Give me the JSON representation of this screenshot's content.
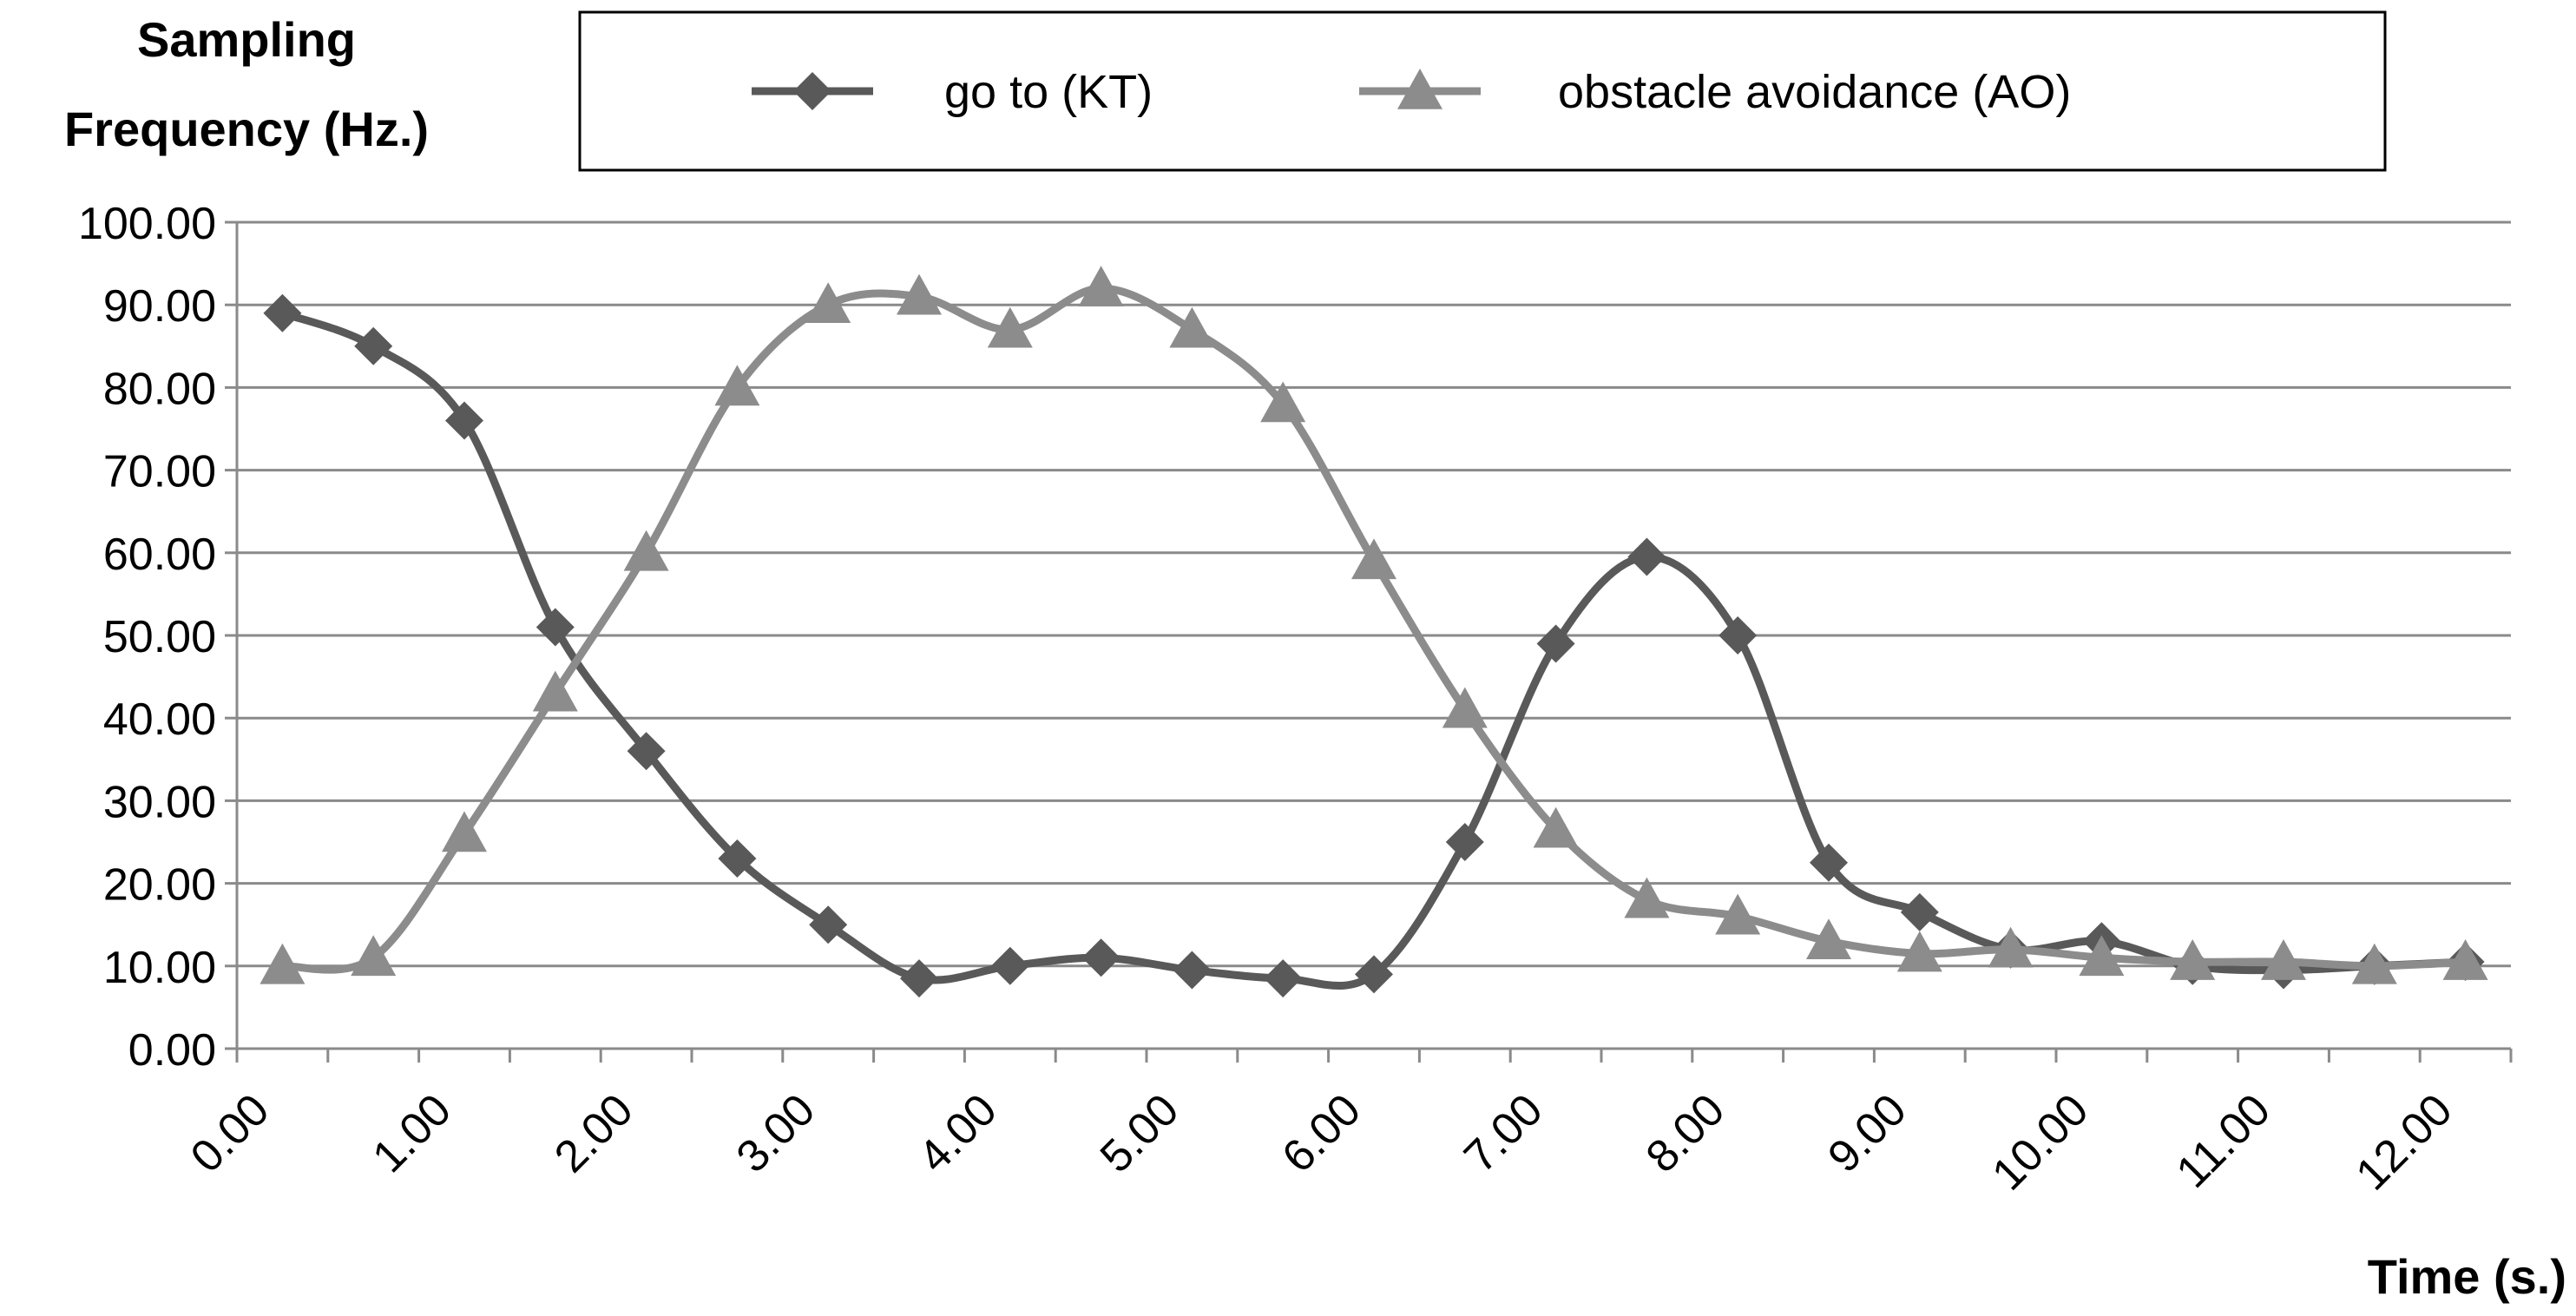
{
  "chart_data": {
    "type": "line",
    "title": "",
    "ylabel_lines": [
      "Sampling",
      "Frequency (Hz.)"
    ],
    "xlabel": "Time (s.)",
    "ylim": [
      0,
      100
    ],
    "xlim": [
      0,
      12.5
    ],
    "y_ticks": [
      "0.00",
      "10.00",
      "20.00",
      "30.00",
      "40.00",
      "50.00",
      "60.00",
      "70.00",
      "80.00",
      "90.00",
      "100.00"
    ],
    "x_ticks": [
      "0.00",
      "1.00",
      "2.00",
      "3.00",
      "4.00",
      "5.00",
      "6.00",
      "7.00",
      "8.00",
      "9.00",
      "10.00",
      "11.00",
      "12.00"
    ],
    "x": [
      0.25,
      0.75,
      1.25,
      1.75,
      2.25,
      2.75,
      3.25,
      3.75,
      4.25,
      4.75,
      5.25,
      5.75,
      6.25,
      6.75,
      7.25,
      7.75,
      8.25,
      8.75,
      9.25,
      9.75,
      10.25,
      10.75,
      11.25,
      11.75,
      12.25
    ],
    "series": [
      {
        "name": "go to (KT)",
        "marker": "diamond",
        "color": "#595959",
        "values": [
          89,
          85,
          76,
          51,
          36,
          23,
          15,
          8.5,
          10,
          11,
          9.5,
          8.5,
          9,
          25,
          49,
          59.5,
          50,
          22.5,
          16.5,
          12,
          13,
          10,
          9.5,
          10,
          10.5
        ]
      },
      {
        "name": "obstacle avoidance (AO)",
        "marker": "triangle",
        "color": "#8c8c8c",
        "values": [
          10,
          11,
          26,
          43,
          60,
          80,
          90,
          91,
          87,
          92,
          87,
          78,
          59,
          41,
          26.5,
          18,
          16,
          13,
          11.5,
          12,
          11,
          10.5,
          10.5,
          10,
          10.5
        ]
      }
    ],
    "legend_position": "top"
  }
}
